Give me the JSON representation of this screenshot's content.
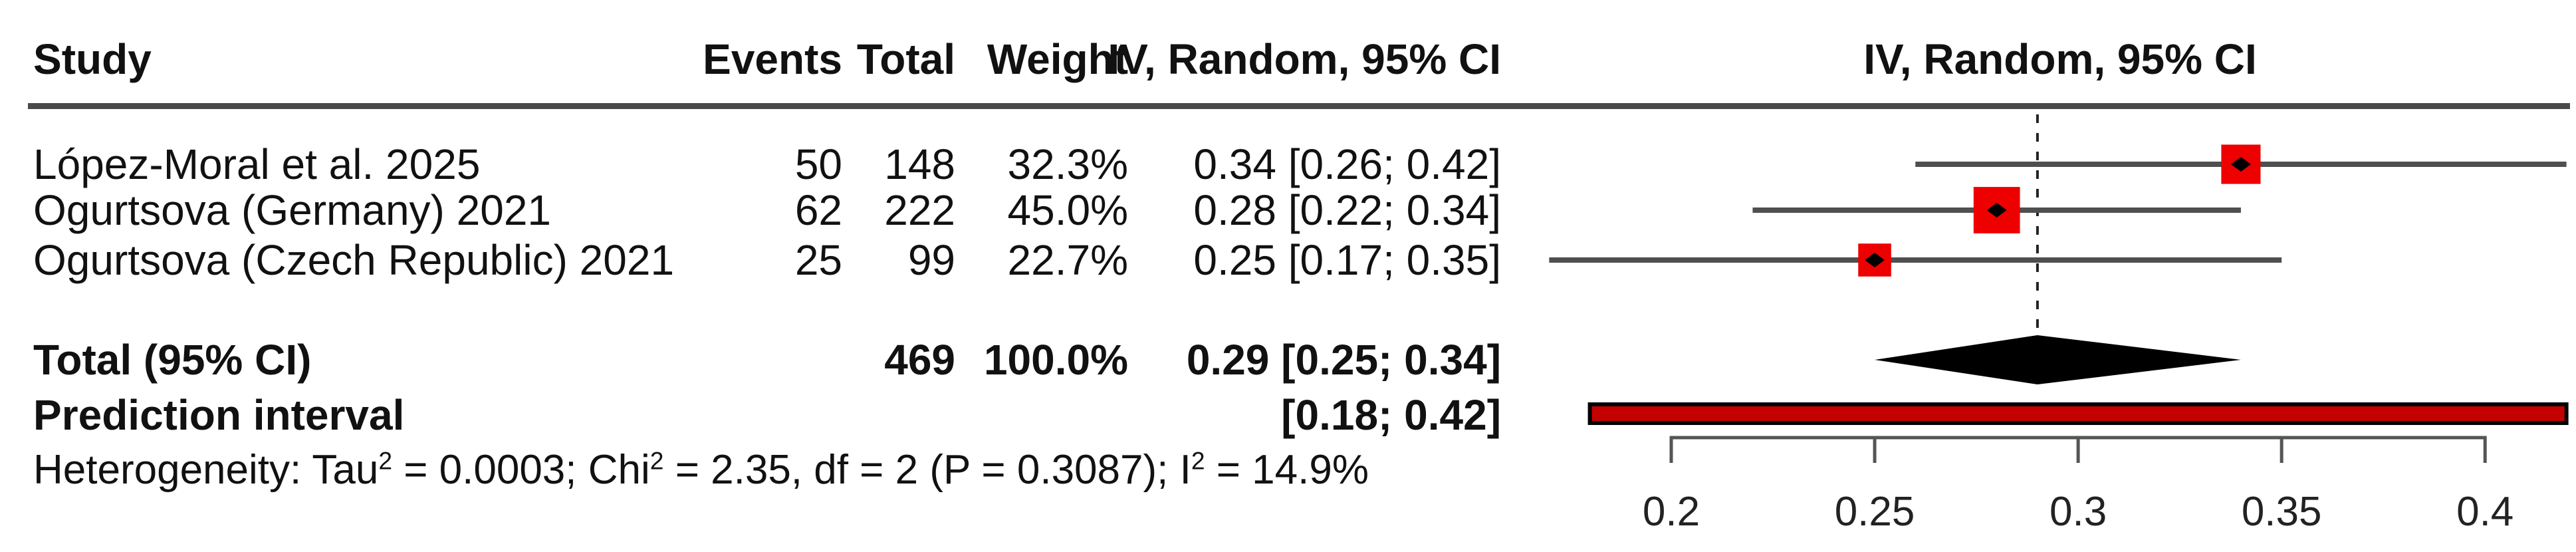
{
  "header": {
    "study": "Study",
    "events": "Events",
    "total": "Total",
    "weight": "Weight",
    "effect_col": "IV, Random, 95% CI",
    "plot_col": "IV, Random, 95% CI"
  },
  "chart_data": {
    "type": "forest",
    "effect_measure": "IV, Random, 95% CI",
    "studies": [
      {
        "name": "López-Moral et al. 2025",
        "events": "50",
        "total": "148",
        "weight": "32.3%",
        "ci_text": "0.34 [0.26; 0.42]",
        "estimate": 0.34,
        "ci_low": 0.26,
        "ci_high": 0.42,
        "weight_pct": 32.3
      },
      {
        "name": "Ogurtsova (Germany) 2021",
        "events": "62",
        "total": "222",
        "weight": "45.0%",
        "ci_text": "0.28 [0.22; 0.34]",
        "estimate": 0.28,
        "ci_low": 0.22,
        "ci_high": 0.34,
        "weight_pct": 45.0
      },
      {
        "name": "Ogurtsova (Czech Republic) 2021",
        "events": "25",
        "total": "99",
        "weight": "22.7%",
        "ci_text": "0.25 [0.17; 0.35]",
        "estimate": 0.25,
        "ci_low": 0.17,
        "ci_high": 0.35,
        "weight_pct": 22.7
      }
    ],
    "total": {
      "label": "Total (95% CI)",
      "total": "469",
      "weight": "100.0%",
      "ci_text": "0.29 [0.25; 0.34]",
      "estimate": 0.29,
      "ci_low": 0.25,
      "ci_high": 0.34
    },
    "prediction": {
      "label": "Prediction interval",
      "ci_text": "[0.18; 0.42]",
      "ci_low": 0.18,
      "ci_high": 0.42
    },
    "heterogeneity": {
      "p1": "Heterogeneity: Tau",
      "s1": "2",
      "p2": " = 0.0003; Chi",
      "s2": "2",
      "p3": " = 2.35, df = 2 (P = 0.3087); I",
      "s3": "2",
      "p4": " = 14.9%"
    },
    "axis": {
      "min": 0.2,
      "max": 0.4,
      "ticks": [
        0.2,
        0.25,
        0.3,
        0.35,
        0.4
      ],
      "tick_labels": [
        "0.2",
        "0.25",
        "0.3",
        "0.35",
        "0.4"
      ]
    },
    "reference_line": 0.29,
    "colors": {
      "square": "#ee0000",
      "prediction_fill": "#c40000",
      "ci_line": "#4f4f4f",
      "diamond": "#000000",
      "axis": "#555555",
      "rule": "#4a4a4a",
      "text": "#111111"
    }
  }
}
